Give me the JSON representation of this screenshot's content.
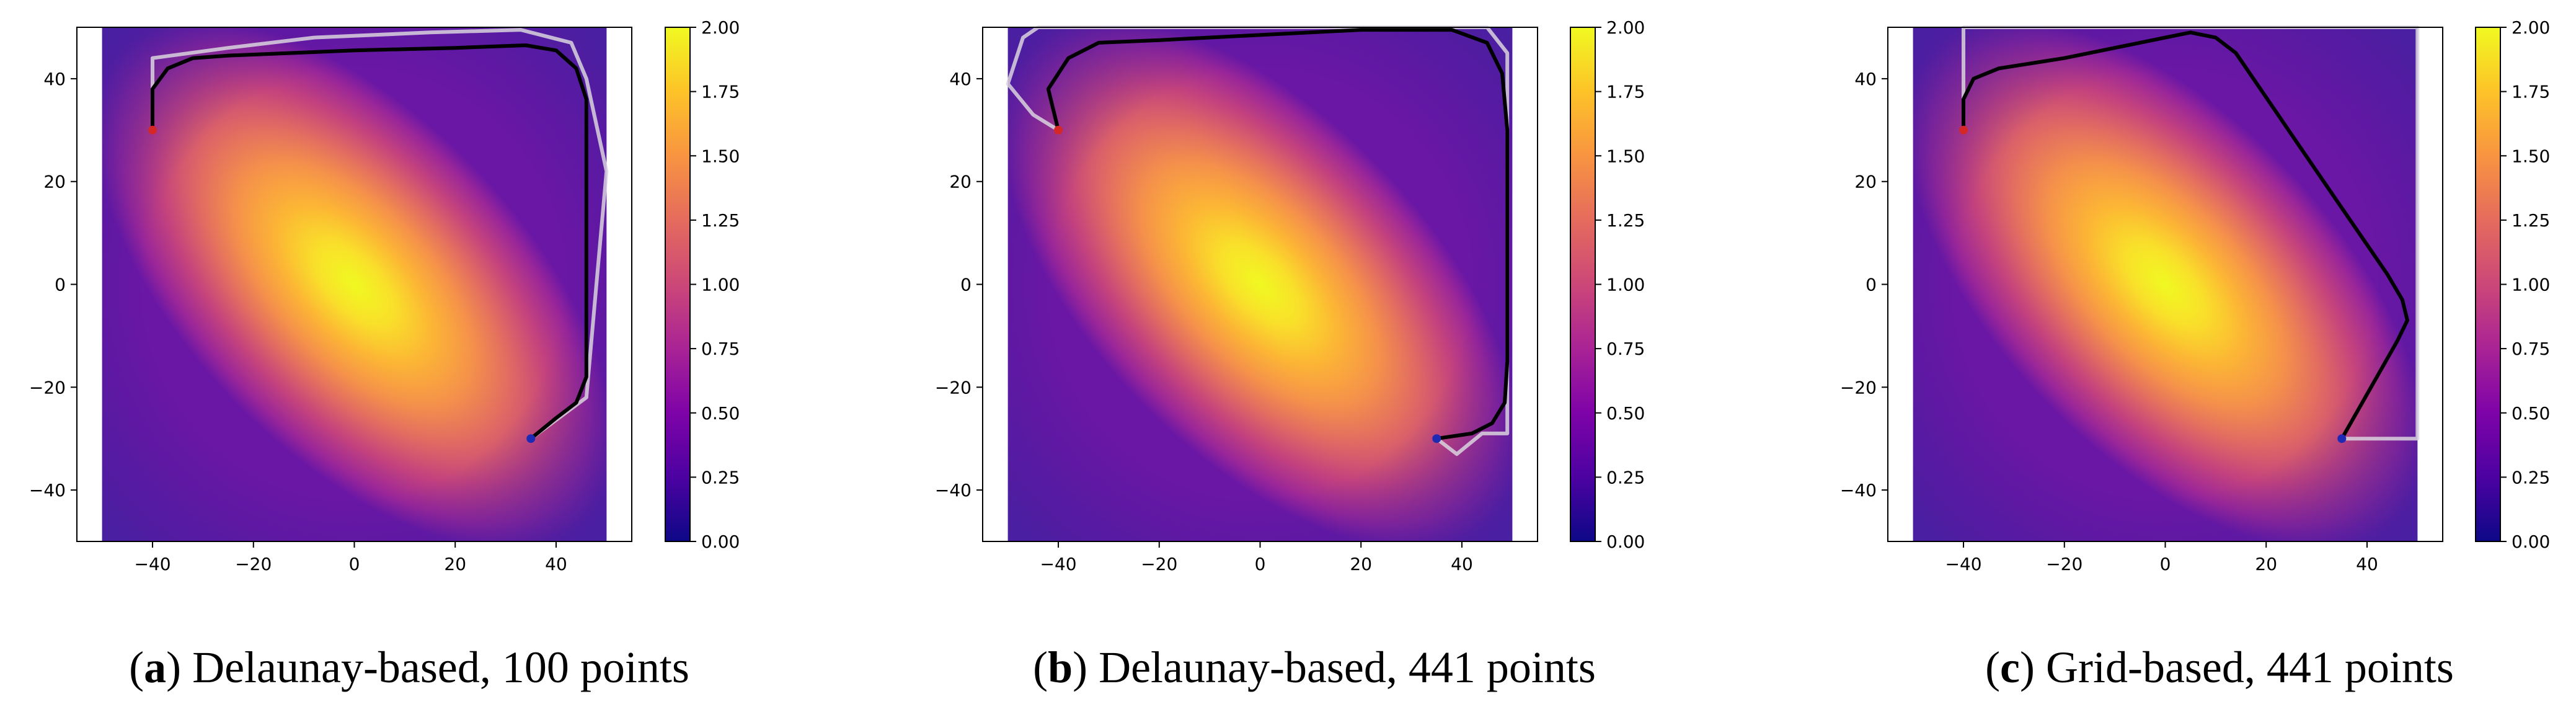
{
  "chart_data": [
    {
      "type": "heatmap",
      "caption": {
        "letter": "a",
        "text": "Delaunay-based, 100 points"
      },
      "x_ticks": [
        -40,
        -20,
        0,
        20,
        40
      ],
      "y_ticks": [
        40,
        20,
        0,
        -20,
        -40
      ],
      "xlim": [
        -55,
        55
      ],
      "ylim": [
        -50,
        50
      ],
      "colorbar": {
        "range": [
          0,
          2
        ],
        "ticks": [
          "2.00",
          "1.75",
          "1.50",
          "1.25",
          "1.00",
          "0.75",
          "0.50",
          "0.25",
          "0.00"
        ],
        "colormap": "plasma"
      },
      "start": {
        "x": -40,
        "y": 30,
        "color": "#d62728"
      },
      "goal": {
        "x": 35,
        "y": -30,
        "color": "#1f2ab4"
      },
      "smooth_path": [
        [
          -40,
          30
        ],
        [
          -40,
          38
        ],
        [
          -37,
          42
        ],
        [
          -32,
          44
        ],
        [
          -25,
          44.5
        ],
        [
          0,
          45.5
        ],
        [
          20,
          46
        ],
        [
          34,
          46.5
        ],
        [
          40,
          45.5
        ],
        [
          44,
          42
        ],
        [
          46,
          36
        ],
        [
          46,
          25
        ],
        [
          46,
          0
        ],
        [
          46,
          -18
        ],
        [
          44,
          -23
        ],
        [
          40,
          -26
        ],
        [
          35,
          -30
        ]
      ],
      "raw_path": [
        [
          -40,
          30
        ],
        [
          -40,
          44
        ],
        [
          -25,
          46
        ],
        [
          -8,
          48
        ],
        [
          15,
          49
        ],
        [
          33,
          49.5
        ],
        [
          43,
          47
        ],
        [
          46,
          40
        ],
        [
          50,
          22
        ],
        [
          48,
          0
        ],
        [
          46,
          -22
        ],
        [
          35,
          -30
        ]
      ]
    },
    {
      "type": "heatmap",
      "caption": {
        "letter": "b",
        "text": "Delaunay-based, 441 points"
      },
      "x_ticks": [
        -40,
        -20,
        0,
        20,
        40
      ],
      "y_ticks": [
        40,
        20,
        0,
        -20,
        -40
      ],
      "xlim": [
        -55,
        55
      ],
      "ylim": [
        -50,
        50
      ],
      "colorbar": {
        "range": [
          0,
          2
        ],
        "ticks": [
          "2.00",
          "1.75",
          "1.50",
          "1.25",
          "1.00",
          "0.75",
          "0.50",
          "0.25",
          "0.00"
        ],
        "colormap": "plasma"
      },
      "start": {
        "x": -40,
        "y": 30,
        "color": "#d62728"
      },
      "goal": {
        "x": 35,
        "y": -30,
        "color": "#1f2ab4"
      },
      "smooth_path": [
        [
          -40,
          30
        ],
        [
          -42,
          38
        ],
        [
          -38,
          44
        ],
        [
          -32,
          47
        ],
        [
          -20,
          47.5
        ],
        [
          0,
          48.5
        ],
        [
          20,
          49.5
        ],
        [
          38,
          49.5
        ],
        [
          45,
          47
        ],
        [
          48,
          41
        ],
        [
          49,
          30
        ],
        [
          49,
          0
        ],
        [
          49,
          -15
        ],
        [
          48.5,
          -23
        ],
        [
          46,
          -27
        ],
        [
          42,
          -29
        ],
        [
          35,
          -30
        ]
      ],
      "raw_path": [
        [
          -40,
          30
        ],
        [
          -45,
          33
        ],
        [
          -50,
          39
        ],
        [
          -47,
          48
        ],
        [
          -44,
          50
        ],
        [
          45,
          50
        ],
        [
          49,
          45
        ],
        [
          49,
          -29
        ],
        [
          44,
          -29
        ],
        [
          39,
          -33
        ],
        [
          35,
          -30
        ]
      ]
    },
    {
      "type": "heatmap",
      "caption": {
        "letter": "c",
        "text": "Grid-based, 441 points"
      },
      "x_ticks": [
        -40,
        -20,
        0,
        20,
        40
      ],
      "y_ticks": [
        40,
        20,
        0,
        -20,
        -40
      ],
      "xlim": [
        -55,
        55
      ],
      "ylim": [
        -50,
        50
      ],
      "colorbar": {
        "range": [
          0,
          2
        ],
        "ticks": [
          "2.00",
          "1.75",
          "1.50",
          "1.25",
          "1.00",
          "0.75",
          "0.50",
          "0.25",
          "0.00"
        ],
        "colormap": "plasma"
      },
      "start": {
        "x": -40,
        "y": 30,
        "color": "#d62728"
      },
      "goal": {
        "x": 35,
        "y": -30,
        "color": "#1f2ab4"
      },
      "smooth_path": [
        [
          -40,
          30
        ],
        [
          -40,
          36
        ],
        [
          -38,
          40
        ],
        [
          -33,
          42
        ],
        [
          -20,
          44
        ],
        [
          0,
          48
        ],
        [
          5,
          49
        ],
        [
          10,
          48
        ],
        [
          14,
          45
        ],
        [
          30,
          22
        ],
        [
          44,
          2
        ],
        [
          47,
          -3
        ],
        [
          48,
          -7
        ],
        [
          46,
          -11
        ],
        [
          35,
          -30
        ]
      ],
      "raw_path": [
        [
          -40,
          30
        ],
        [
          -40,
          50
        ],
        [
          50,
          50
        ],
        [
          50,
          -30
        ],
        [
          35,
          -30
        ]
      ]
    }
  ]
}
